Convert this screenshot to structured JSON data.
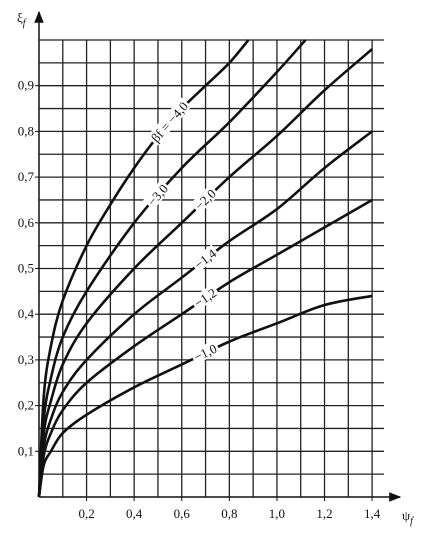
{
  "chart_data": {
    "type": "line",
    "y_label": "ξ",
    "y_label_sub": "f",
    "x_label": "ψ",
    "x_label_sub": "f",
    "xlim": [
      0,
      1.45
    ],
    "ylim": [
      0,
      1.0
    ],
    "xticks": [
      {
        "value": 0.2,
        "label": "0,2"
      },
      {
        "value": 0.4,
        "label": "0,4"
      },
      {
        "value": 0.6,
        "label": "0,6"
      },
      {
        "value": 0.8,
        "label": "0,8"
      },
      {
        "value": 1.0,
        "label": "1,0"
      },
      {
        "value": 1.2,
        "label": "1,2"
      },
      {
        "value": 1.4,
        "label": "1,4"
      }
    ],
    "yticks": [
      {
        "value": 0.1,
        "label": "0,1"
      },
      {
        "value": 0.2,
        "label": "0,2"
      },
      {
        "value": 0.3,
        "label": "0,3"
      },
      {
        "value": 0.4,
        "label": "0,4"
      },
      {
        "value": 0.5,
        "label": "0,5"
      },
      {
        "value": 0.6,
        "label": "0,6"
      },
      {
        "value": 0.7,
        "label": "0,7"
      },
      {
        "value": 0.8,
        "label": "0,8"
      },
      {
        "value": 0.9,
        "label": "0,9"
      }
    ],
    "grid": {
      "x": 0.1,
      "y": 0.05
    },
    "series": [
      {
        "name": "βf = −4,0",
        "color": "#111",
        "x": [
          0,
          0.02,
          0.05,
          0.1,
          0.2,
          0.3,
          0.4,
          0.5,
          0.6,
          0.7,
          0.8,
          0.88
        ],
        "values": [
          0,
          0.22,
          0.33,
          0.43,
          0.55,
          0.64,
          0.72,
          0.79,
          0.85,
          0.9,
          0.95,
          1.0
        ]
      },
      {
        "name": "−3,0",
        "color": "#111",
        "x": [
          0,
          0.02,
          0.05,
          0.1,
          0.2,
          0.4,
          0.6,
          0.8,
          1.0,
          1.12
        ],
        "values": [
          0,
          0.17,
          0.26,
          0.35,
          0.45,
          0.6,
          0.72,
          0.82,
          0.93,
          1.0
        ]
      },
      {
        "name": "−2,0",
        "color": "#111",
        "x": [
          0,
          0.02,
          0.05,
          0.1,
          0.2,
          0.4,
          0.6,
          0.8,
          1.0,
          1.2,
          1.4
        ],
        "values": [
          0,
          0.14,
          0.21,
          0.29,
          0.38,
          0.5,
          0.6,
          0.7,
          0.79,
          0.89,
          0.98
        ]
      },
      {
        "name": "−1,4",
        "color": "#111",
        "x": [
          0,
          0.02,
          0.05,
          0.1,
          0.2,
          0.4,
          0.6,
          0.8,
          1.0,
          1.2,
          1.4
        ],
        "values": [
          0,
          0.11,
          0.17,
          0.23,
          0.3,
          0.4,
          0.48,
          0.56,
          0.63,
          0.72,
          0.8
        ]
      },
      {
        "name": "−1,2",
        "color": "#111",
        "x": [
          0,
          0.02,
          0.05,
          0.1,
          0.2,
          0.4,
          0.6,
          0.8,
          1.0,
          1.2,
          1.4
        ],
        "values": [
          0,
          0.09,
          0.14,
          0.19,
          0.25,
          0.33,
          0.4,
          0.47,
          0.53,
          0.59,
          0.65
        ]
      },
      {
        "name": "−1,0",
        "color": "#111",
        "x": [
          0,
          0.02,
          0.05,
          0.1,
          0.2,
          0.4,
          0.6,
          0.8,
          1.0,
          1.2,
          1.4
        ],
        "values": [
          0,
          0.07,
          0.1,
          0.14,
          0.18,
          0.24,
          0.29,
          0.34,
          0.38,
          0.42,
          0.44
        ]
      }
    ]
  }
}
